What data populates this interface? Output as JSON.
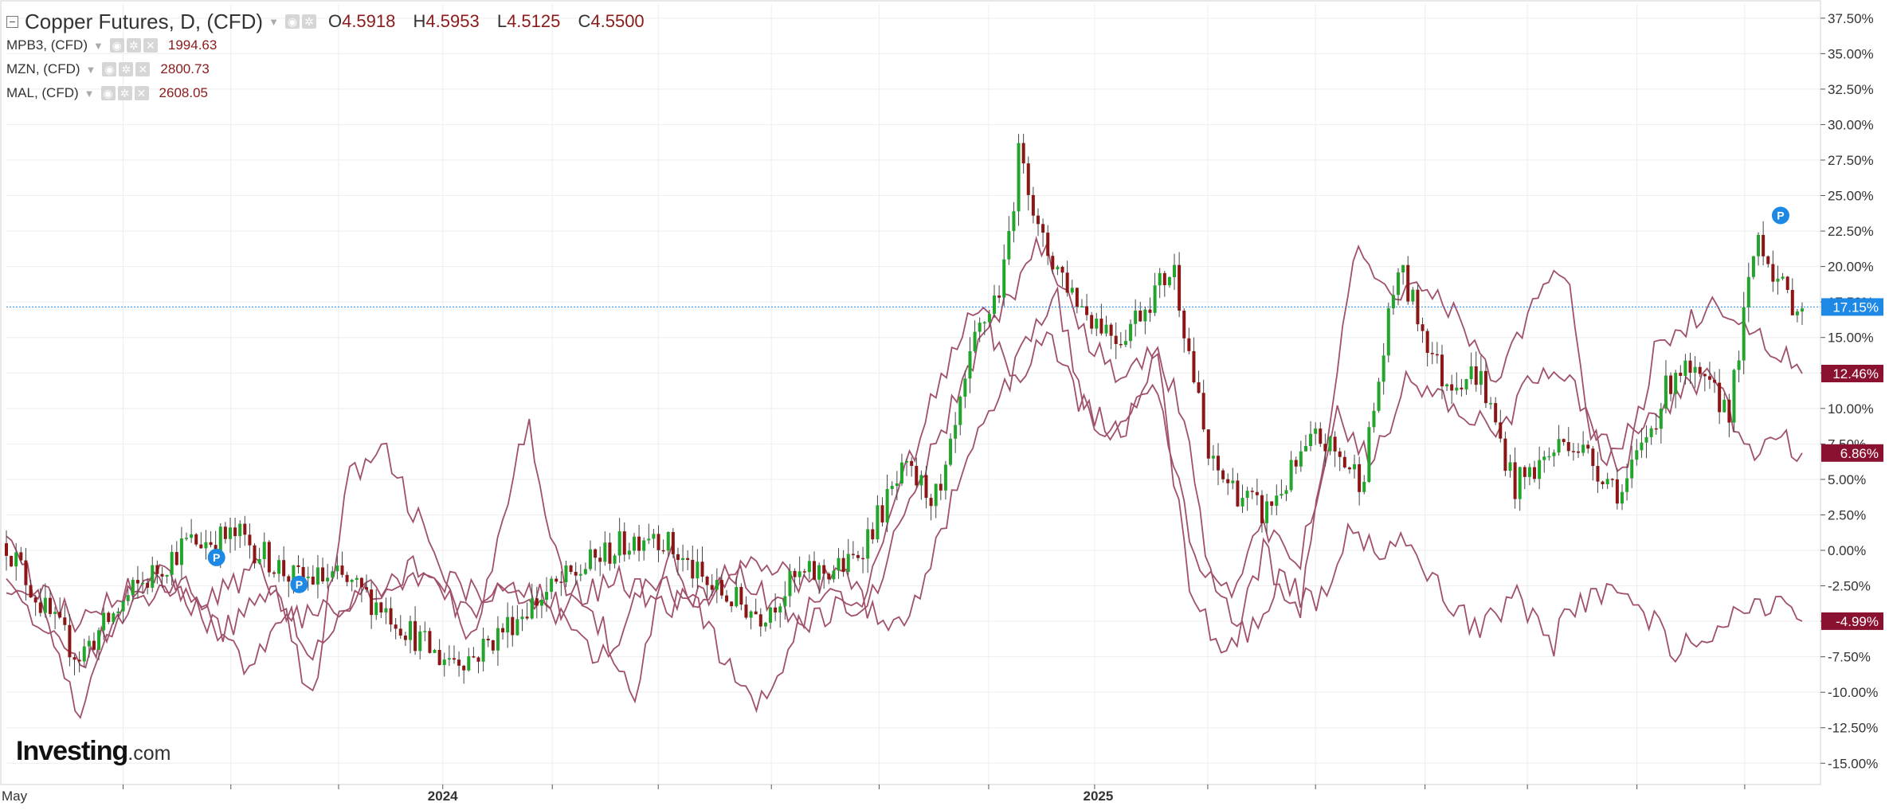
{
  "legend": {
    "main": {
      "title": "Copper Futures, D, (CFD)",
      "o_label": "O",
      "o": "4.5918",
      "h_label": "H",
      "h": "4.5953",
      "l_label": "L",
      "l": "4.5125",
      "c_label": "C",
      "c": "4.5500"
    },
    "rows": [
      {
        "name": "MPB3, (CFD)",
        "value": "1994.63"
      },
      {
        "name": "MZN, (CFD)",
        "value": "2800.73"
      },
      {
        "name": "MAL, (CFD)",
        "value": "2608.05"
      }
    ]
  },
  "logo": {
    "main": "Investing",
    "suffix": ".com"
  },
  "colors": {
    "up": "#21a52b",
    "down": "#8b1616",
    "line": "#a0506c",
    "grid": "#eeeeee",
    "current": "#1e88e5",
    "label_bg": "#8b1130",
    "marker": "#1e88e5"
  },
  "icons": [
    "collapse-icon",
    "eye-icon",
    "gear-icon",
    "close-icon",
    "pattern-marker-icon"
  ],
  "chart_data": {
    "type": "line",
    "y_axis": {
      "ticks": [
        "37.50%",
        "35.00%",
        "32.50%",
        "30.00%",
        "27.50%",
        "25.00%",
        "22.50%",
        "20.00%",
        "17.50%",
        "15.00%",
        "12.50%",
        "10.00%",
        "7.50%",
        "5.00%",
        "2.50%",
        "0.00%",
        "-2.50%",
        "-5.00%",
        "-7.50%",
        "-10.00%",
        "-12.50%",
        "-15.00%"
      ],
      "range": [
        -16.5,
        38.5
      ],
      "unit": "%"
    },
    "x_axis": {
      "labels": [
        "May",
        "2024",
        "2025"
      ]
    },
    "badges": [
      {
        "text": "17.15%",
        "value": 17.15,
        "color": "#1e88e5"
      },
      {
        "text": "12.46%",
        "value": 12.46,
        "color": "#8b1130"
      },
      {
        "text": "6.86%",
        "value": 6.86,
        "color": "#8b1130"
      },
      {
        "text": "-4.99%",
        "value": -4.99,
        "color": "#8b1130"
      }
    ],
    "markers": [
      {
        "text": "P",
        "x": 0.117,
        "y": -0.5
      },
      {
        "text": "P",
        "x": 0.163,
        "y": -2.4
      },
      {
        "text": "P",
        "x": 0.988,
        "y": 23.6
      }
    ],
    "candle_anchors": [
      [
        0,
        0.5
      ],
      [
        0.02,
        -4
      ],
      [
        0.04,
        -7.5
      ],
      [
        0.07,
        -3
      ],
      [
        0.1,
        0.5
      ],
      [
        0.13,
        1
      ],
      [
        0.16,
        -2
      ],
      [
        0.185,
        -2
      ],
      [
        0.21,
        -4
      ],
      [
        0.24,
        -7.5
      ],
      [
        0.26,
        -7.5
      ],
      [
        0.29,
        -4
      ],
      [
        0.33,
        -0.5
      ],
      [
        0.36,
        1.5
      ],
      [
        0.39,
        -2.5
      ],
      [
        0.42,
        -4.5
      ],
      [
        0.44,
        -2
      ],
      [
        0.47,
        -1
      ],
      [
        0.5,
        5.5
      ],
      [
        0.52,
        3.5
      ],
      [
        0.54,
        15
      ],
      [
        0.555,
        19
      ],
      [
        0.565,
        29
      ],
      [
        0.575,
        22
      ],
      [
        0.6,
        17
      ],
      [
        0.62,
        15
      ],
      [
        0.65,
        20
      ],
      [
        0.67,
        6
      ],
      [
        0.7,
        2.5
      ],
      [
        0.73,
        8
      ],
      [
        0.755,
        5
      ],
      [
        0.775,
        20
      ],
      [
        0.8,
        12
      ],
      [
        0.82,
        12.5
      ],
      [
        0.84,
        4.5
      ],
      [
        0.87,
        8
      ],
      [
        0.9,
        4
      ],
      [
        0.93,
        13
      ],
      [
        0.96,
        10
      ],
      [
        0.975,
        22.5
      ],
      [
        0.99,
        18
      ],
      [
        1,
        17.15
      ]
    ],
    "series": [
      {
        "anchors": [
          [
            0,
            2
          ],
          [
            0.02,
            -4
          ],
          [
            0.04,
            -12
          ],
          [
            0.06,
            -5
          ],
          [
            0.08,
            -1
          ],
          [
            0.12,
            -6
          ],
          [
            0.15,
            -2
          ],
          [
            0.17,
            -11
          ],
          [
            0.19,
            5
          ],
          [
            0.21,
            7
          ],
          [
            0.23,
            2
          ],
          [
            0.26,
            -7
          ],
          [
            0.29,
            9
          ],
          [
            0.31,
            -2
          ],
          [
            0.33,
            -5
          ],
          [
            0.35,
            -10
          ],
          [
            0.37,
            0
          ],
          [
            0.4,
            -8
          ],
          [
            0.42,
            -11
          ],
          [
            0.45,
            -3
          ],
          [
            0.48,
            -4
          ],
          [
            0.5,
            3
          ],
          [
            0.52,
            8
          ],
          [
            0.54,
            14
          ],
          [
            0.56,
            18
          ],
          [
            0.575,
            22
          ],
          [
            0.6,
            15
          ],
          [
            0.62,
            12
          ],
          [
            0.64,
            14
          ],
          [
            0.66,
            -3
          ],
          [
            0.68,
            -8
          ],
          [
            0.7,
            0
          ],
          [
            0.72,
            -5
          ],
          [
            0.75,
            21
          ],
          [
            0.77,
            18
          ],
          [
            0.79,
            19
          ],
          [
            0.81,
            16
          ],
          [
            0.83,
            12
          ],
          [
            0.85,
            17
          ],
          [
            0.87,
            20
          ],
          [
            0.88,
            10
          ],
          [
            0.9,
            5
          ],
          [
            0.92,
            15
          ],
          [
            0.95,
            17
          ],
          [
            0.97,
            16
          ],
          [
            1,
            12.46
          ]
        ]
      },
      {
        "anchors": [
          [
            0,
            -1
          ],
          [
            0.02,
            -6
          ],
          [
            0.04,
            -8
          ],
          [
            0.07,
            -4
          ],
          [
            0.1,
            -2
          ],
          [
            0.13,
            -8
          ],
          [
            0.16,
            -5
          ],
          [
            0.2,
            -3
          ],
          [
            0.23,
            -1
          ],
          [
            0.26,
            -3
          ],
          [
            0.29,
            -3
          ],
          [
            0.31,
            -5
          ],
          [
            0.33,
            -8
          ],
          [
            0.36,
            -2
          ],
          [
            0.38,
            -4
          ],
          [
            0.41,
            -1
          ],
          [
            0.44,
            -2
          ],
          [
            0.47,
            -2
          ],
          [
            0.49,
            -6
          ],
          [
            0.51,
            -3
          ],
          [
            0.53,
            5
          ],
          [
            0.55,
            10
          ],
          [
            0.57,
            15
          ],
          [
            0.585,
            18
          ],
          [
            0.6,
            10
          ],
          [
            0.62,
            8
          ],
          [
            0.64,
            12
          ],
          [
            0.66,
            0
          ],
          [
            0.68,
            -3
          ],
          [
            0.7,
            2
          ],
          [
            0.72,
            -1
          ],
          [
            0.74,
            10
          ],
          [
            0.76,
            6
          ],
          [
            0.78,
            12
          ],
          [
            0.81,
            10
          ],
          [
            0.83,
            8
          ],
          [
            0.85,
            12
          ],
          [
            0.87,
            13
          ],
          [
            0.89,
            6
          ],
          [
            0.91,
            9
          ],
          [
            0.93,
            11
          ],
          [
            0.95,
            12
          ],
          [
            0.97,
            7
          ],
          [
            0.99,
            8
          ],
          [
            1,
            6.86
          ]
        ]
      },
      {
        "anchors": [
          [
            0,
            -2
          ],
          [
            0.02,
            -3
          ],
          [
            0.04,
            -5
          ],
          [
            0.06,
            -3
          ],
          [
            0.08,
            -2
          ],
          [
            0.11,
            -4
          ],
          [
            0.14,
            -1
          ],
          [
            0.16,
            -5
          ],
          [
            0.17,
            -7
          ],
          [
            0.2,
            -3
          ],
          [
            0.23,
            -2
          ],
          [
            0.26,
            -5
          ],
          [
            0.28,
            -2
          ],
          [
            0.31,
            -4
          ],
          [
            0.34,
            -2
          ],
          [
            0.37,
            -4
          ],
          [
            0.39,
            -3
          ],
          [
            0.41,
            -2
          ],
          [
            0.43,
            -4
          ],
          [
            0.45,
            -5
          ],
          [
            0.48,
            -3
          ],
          [
            0.5,
            5
          ],
          [
            0.52,
            12
          ],
          [
            0.54,
            18
          ],
          [
            0.56,
            12
          ],
          [
            0.58,
            15
          ],
          [
            0.6,
            10
          ],
          [
            0.62,
            8
          ],
          [
            0.64,
            14
          ],
          [
            0.655,
            10
          ],
          [
            0.67,
            -2
          ],
          [
            0.69,
            -6
          ],
          [
            0.71,
            -2
          ],
          [
            0.73,
            -4
          ],
          [
            0.75,
            2
          ],
          [
            0.76,
            0
          ],
          [
            0.78,
            1
          ],
          [
            0.8,
            -3
          ],
          [
            0.82,
            -6
          ],
          [
            0.84,
            -3
          ],
          [
            0.86,
            -7
          ],
          [
            0.87,
            -4
          ],
          [
            0.89,
            -3
          ],
          [
            0.91,
            -4
          ],
          [
            0.93,
            -7
          ],
          [
            0.95,
            -6
          ],
          [
            0.97,
            -4
          ],
          [
            0.99,
            -4
          ],
          [
            1,
            -4.99
          ]
        ]
      }
    ]
  }
}
